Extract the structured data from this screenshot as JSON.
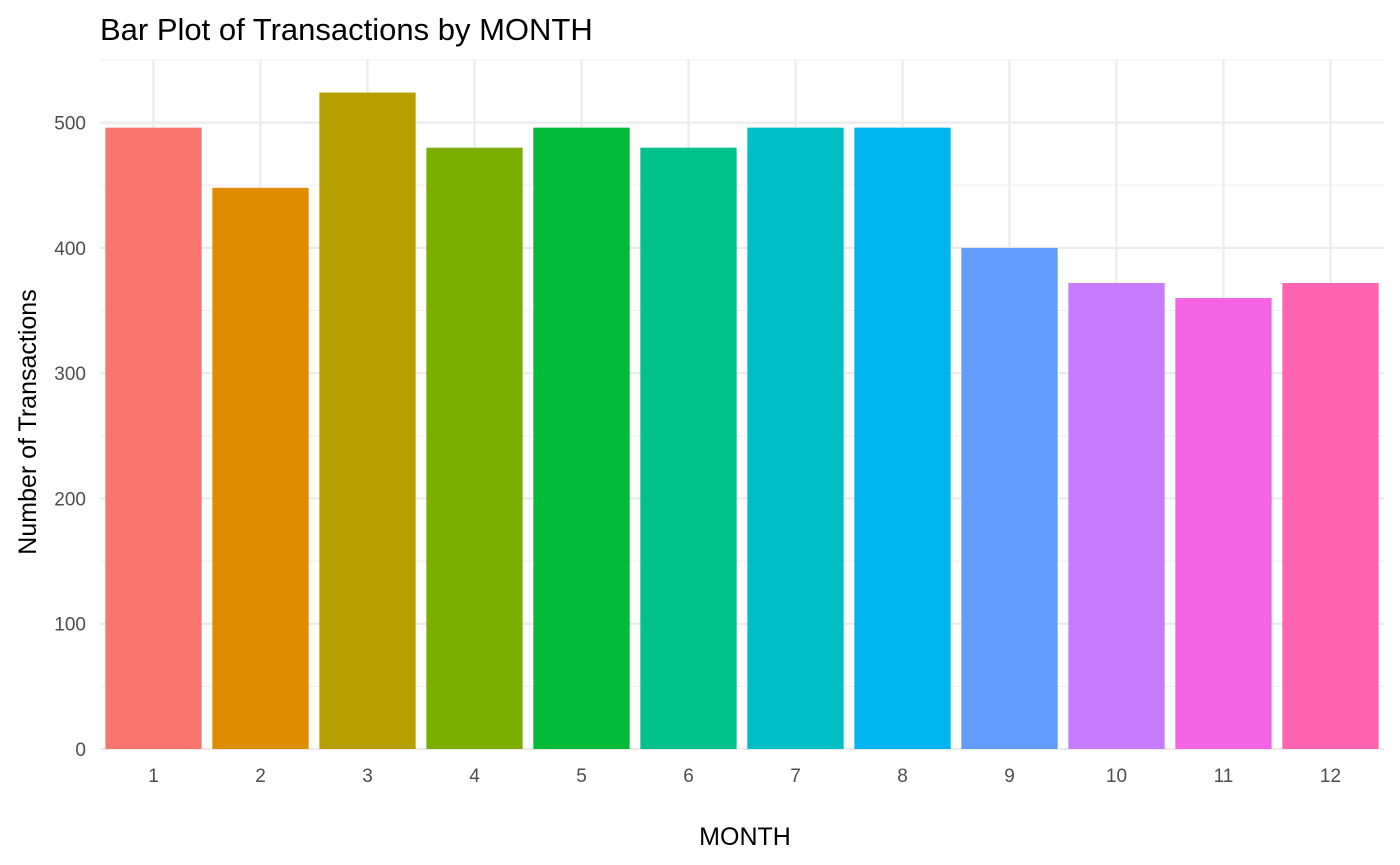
{
  "chart_data": {
    "type": "bar",
    "title": "Bar Plot of Transactions by MONTH",
    "xlabel": "MONTH",
    "ylabel": "Number of Transactions",
    "categories": [
      "1",
      "2",
      "3",
      "4",
      "5",
      "6",
      "7",
      "8",
      "9",
      "10",
      "11",
      "12"
    ],
    "values": [
      496,
      448,
      524,
      480,
      496,
      480,
      496,
      496,
      400,
      372,
      360,
      372
    ],
    "colors": [
      "#F8766D",
      "#DE8C00",
      "#B79F00",
      "#7CAE00",
      "#00BA38",
      "#00C08B",
      "#00BFC4",
      "#00B4F0",
      "#619CFF",
      "#C77CFF",
      "#F564E3",
      "#FF64B0"
    ],
    "ylim": [
      0,
      550
    ],
    "yticks": [
      0,
      100,
      200,
      300,
      400,
      500
    ],
    "grid": true,
    "legend": "none"
  }
}
